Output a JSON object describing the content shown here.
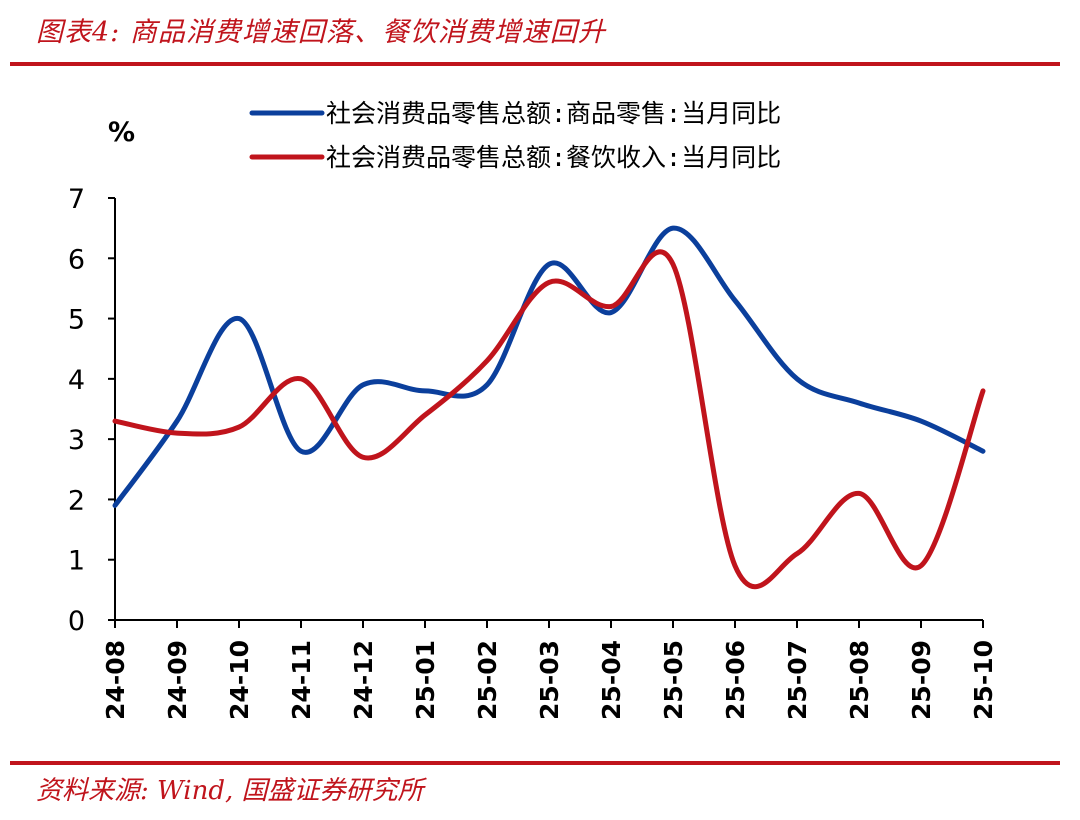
{
  "figure_title": "图表4:  商品消费增速回落、餐饮消费增速回升",
  "source_note": "资料来源:  Wind,  国盛证券研究所",
  "colors": {
    "accent": "#c0141c",
    "goods": "#0b3f9c",
    "catering": "#c0141c"
  },
  "chart_data": {
    "type": "line",
    "y_unit": "%",
    "categories": [
      "24-08",
      "24-09",
      "24-10",
      "24-11",
      "24-12",
      "25-01",
      "25-02",
      "25-03",
      "25-04",
      "25-05",
      "25-06",
      "25-07",
      "25-08",
      "25-09",
      "25-10"
    ],
    "ylim": [
      0,
      7
    ],
    "yticks": [
      0,
      1,
      2,
      3,
      4,
      5,
      6,
      7
    ],
    "grid": false,
    "legend_position": "top",
    "series": [
      {
        "name": "社会消费品零售总额:商品零售:当月同比",
        "color": "#0b3f9c",
        "values": [
          1.9,
          3.3,
          5.0,
          2.8,
          3.9,
          3.8,
          3.9,
          5.9,
          5.1,
          6.5,
          5.3,
          4.0,
          3.6,
          3.3,
          2.8
        ]
      },
      {
        "name": "社会消费品零售总额:餐饮收入:当月同比",
        "color": "#c0141c",
        "values": [
          3.3,
          3.1,
          3.2,
          4.0,
          2.7,
          3.4,
          4.3,
          5.6,
          5.2,
          5.9,
          0.9,
          1.1,
          2.1,
          0.9,
          3.8
        ]
      }
    ]
  }
}
